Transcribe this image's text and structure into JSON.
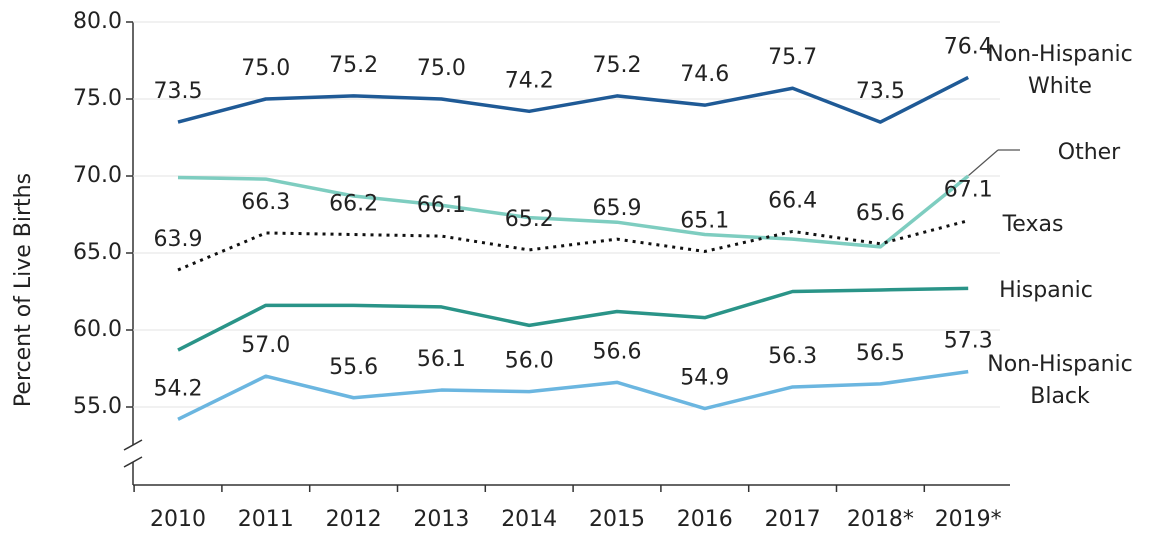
{
  "chart_data": {
    "type": "line",
    "y_label": "Percent of Live Births",
    "categories": [
      "2010",
      "2011",
      "2012",
      "2013",
      "2014",
      "2015",
      "2016",
      "2017",
      "2018*",
      "2019*"
    ],
    "ylim": [
      50,
      80
    ],
    "yticks": [
      {
        "value": 55,
        "label": "55.0"
      },
      {
        "value": 60,
        "label": "60.0"
      },
      {
        "value": 65,
        "label": "65.0"
      },
      {
        "value": 70,
        "label": "70.0"
      },
      {
        "value": 75,
        "label": "75.0"
      },
      {
        "value": 80,
        "label": "80.0"
      }
    ],
    "grid": true,
    "series": [
      {
        "name": "Non-Hispanic White",
        "color": "#1f5a96",
        "values": [
          73.5,
          75.0,
          75.2,
          75.0,
          74.2,
          75.2,
          74.6,
          75.7,
          73.5,
          76.4
        ],
        "value_labels": [
          "73.5",
          "75.0",
          "75.2",
          "75.0",
          "74.2",
          "75.2",
          "74.6",
          "75.7",
          "73.5",
          "76.4"
        ]
      },
      {
        "name": "Other",
        "color": "#7ecdc0",
        "values": [
          69.9,
          69.8,
          68.7,
          68.1,
          67.3,
          67.0,
          66.2,
          65.9,
          65.4,
          70.0
        ]
      },
      {
        "name": "Texas",
        "color": "#111111",
        "dash": true,
        "values": [
          63.9,
          66.3,
          66.2,
          66.1,
          65.2,
          65.9,
          65.1,
          66.4,
          65.6,
          67.1
        ],
        "value_labels": [
          "63.9",
          "66.3",
          "66.2",
          "66.1",
          "65.2",
          "65.9",
          "65.1",
          "66.4",
          "65.6",
          "67.1"
        ]
      },
      {
        "name": "Hispanic",
        "color": "#2a9488",
        "values": [
          58.7,
          61.6,
          61.6,
          61.5,
          60.3,
          61.2,
          60.8,
          62.5,
          62.6,
          62.7
        ]
      },
      {
        "name": "Non-Hispanic Black",
        "color": "#6bb6e0",
        "values": [
          54.2,
          57.0,
          55.6,
          56.1,
          56.0,
          56.6,
          54.9,
          56.3,
          56.5,
          57.3
        ],
        "value_labels": [
          "54.2",
          "57.0",
          "55.6",
          "56.1",
          "56.0",
          "56.6",
          "54.9",
          "56.3",
          "56.5",
          "57.3"
        ]
      }
    ]
  }
}
